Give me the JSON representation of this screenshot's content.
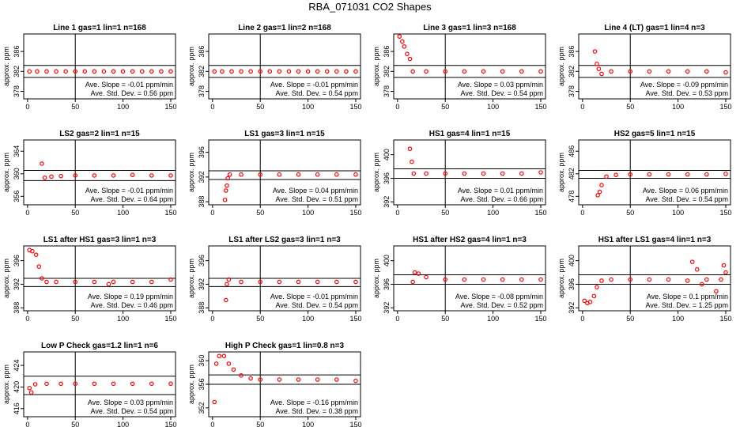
{
  "figure": {
    "title": "RBA_071031  CO2 Shapes"
  },
  "chart_data": [
    {
      "type": "scatter",
      "title": "Line 1 gas=1 lin=1 n=168",
      "ylabel": "approx. ppm",
      "xlim": [
        -4,
        155
      ],
      "ylim": [
        376.5,
        389.5
      ],
      "xticks": [
        0,
        50,
        100,
        150
      ],
      "xtick_labels": [
        "0",
        "50",
        "100",
        "150"
      ],
      "yticks": [
        378,
        382,
        386
      ],
      "ytick_labels": [
        "378",
        "382",
        "386"
      ],
      "hlines": [
        383.2,
        380.8
      ],
      "vline": 50,
      "annotation": [
        "Ave. Slope = -0.01  ppm/min",
        "Ave. Std. Dev. = 0.56  ppm"
      ],
      "points": [
        [
          2,
          382.0
        ],
        [
          10,
          382.0
        ],
        [
          20,
          382.0
        ],
        [
          30,
          382.0
        ],
        [
          40,
          382.0
        ],
        [
          50,
          382.0
        ],
        [
          60,
          382.0
        ],
        [
          70,
          382.0
        ],
        [
          80,
          382.0
        ],
        [
          90,
          382.0
        ],
        [
          100,
          382.0
        ],
        [
          110,
          382.0
        ],
        [
          120,
          382.0
        ],
        [
          130,
          382.0
        ],
        [
          140,
          382.0
        ],
        [
          150,
          382.0
        ]
      ]
    },
    {
      "type": "scatter",
      "title": "Line 2 gas=1 lin=2 n=168",
      "ylabel": "approx. ppm",
      "xlim": [
        -4,
        155
      ],
      "ylim": [
        376.5,
        389.5
      ],
      "xticks": [
        0,
        50,
        100,
        150
      ],
      "xtick_labels": [
        "0",
        "50",
        "100",
        "150"
      ],
      "yticks": [
        378,
        382,
        386
      ],
      "ytick_labels": [
        "378",
        "382",
        "386"
      ],
      "hlines": [
        383.2,
        380.8
      ],
      "vline": 50,
      "annotation": [
        "Ave. Slope = -0.01  ppm/min",
        "Ave. Std. Dev. = 0.54  ppm"
      ],
      "points": [
        [
          2,
          382.0
        ],
        [
          10,
          382.0
        ],
        [
          20,
          382.0
        ],
        [
          30,
          382.0
        ],
        [
          40,
          382.0
        ],
        [
          50,
          382.0
        ],
        [
          60,
          382.0
        ],
        [
          70,
          382.0
        ],
        [
          80,
          382.0
        ],
        [
          90,
          382.0
        ],
        [
          100,
          382.0
        ],
        [
          110,
          382.0
        ],
        [
          120,
          382.0
        ],
        [
          130,
          382.0
        ],
        [
          140,
          382.0
        ],
        [
          150,
          382.0
        ]
      ]
    },
    {
      "type": "scatter",
      "title": "Line 3 gas=1 lin=3 n=168",
      "ylabel": "approx. ppm",
      "xlim": [
        -4,
        155
      ],
      "ylim": [
        376.5,
        389.5
      ],
      "xticks": [
        0,
        50,
        100,
        150
      ],
      "xtick_labels": [
        "0",
        "50",
        "100",
        "150"
      ],
      "yticks": [
        378,
        382,
        386
      ],
      "ytick_labels": [
        "378",
        "382",
        "386"
      ],
      "hlines": [
        383.2,
        380.8
      ],
      "vline": 50,
      "annotation": [
        "Ave. Slope = 0.03  ppm/min",
        "Ave. Std. Dev. = 0.54  ppm"
      ],
      "points": [
        [
          2,
          389.0
        ],
        [
          5,
          388.0
        ],
        [
          7,
          387.0
        ],
        [
          10,
          385.5
        ],
        [
          13,
          384.5
        ],
        [
          16,
          382.0
        ],
        [
          30,
          382.0
        ],
        [
          50,
          382.0
        ],
        [
          70,
          382.0
        ],
        [
          90,
          382.0
        ],
        [
          110,
          382.0
        ],
        [
          130,
          382.0
        ],
        [
          150,
          382.0
        ]
      ]
    },
    {
      "type": "scatter",
      "title": "Line 4 (LT) gas=1 lin=4 n=3",
      "ylabel": "approx. ppm",
      "xlim": [
        -4,
        155
      ],
      "ylim": [
        376.5,
        389.5
      ],
      "xticks": [
        0,
        50,
        100,
        150
      ],
      "xtick_labels": [
        "0",
        "50",
        "100",
        "150"
      ],
      "yticks": [
        378,
        382,
        386
      ],
      "ytick_labels": [
        "378",
        "382",
        "386"
      ],
      "hlines": [
        383.2,
        380.8
      ],
      "vline": 50,
      "annotation": [
        "Ave. Slope = -0.09  ppm/min",
        "Ave. Std. Dev. = 0.53  ppm"
      ],
      "points": [
        [
          13,
          386.0
        ],
        [
          15,
          383.5
        ],
        [
          17,
          382.5
        ],
        [
          20,
          381.5
        ],
        [
          30,
          382.0
        ],
        [
          50,
          382.0
        ],
        [
          70,
          382.0
        ],
        [
          90,
          382.0
        ],
        [
          110,
          382.0
        ],
        [
          130,
          382.0
        ],
        [
          150,
          381.8
        ]
      ]
    },
    {
      "type": "scatter",
      "title": "LS2 gas=2 lin=1 n=15",
      "ylabel": "approx. ppm",
      "xlim": [
        -4,
        155
      ],
      "ylim": [
        354.5,
        366
      ],
      "xticks": [
        0,
        50,
        100,
        150
      ],
      "xtick_labels": [
        "0",
        "50",
        "100",
        "150"
      ],
      "yticks": [
        356,
        360,
        364
      ],
      "ytick_labels": [
        "356",
        "360",
        "364"
      ],
      "hlines": [
        360.6,
        358.8
      ],
      "vline": 50,
      "annotation": [
        "Ave. Slope = -0.01  ppm/min",
        "Ave. Std. Dev. = 0.64  ppm"
      ],
      "points": [
        [
          15,
          361.8
        ],
        [
          18,
          359.3
        ],
        [
          25,
          359.5
        ],
        [
          35,
          359.6
        ],
        [
          50,
          359.7
        ],
        [
          70,
          359.7
        ],
        [
          90,
          359.7
        ],
        [
          110,
          359.8
        ],
        [
          130,
          359.7
        ],
        [
          150,
          359.7
        ]
      ]
    },
    {
      "type": "scatter",
      "title": "LS1 gas=3 lin=1 n=15",
      "ylabel": "approx. ppm",
      "xlim": [
        -4,
        155
      ],
      "ylim": [
        387.5,
        398
      ],
      "xticks": [
        0,
        50,
        100,
        150
      ],
      "xtick_labels": [
        "0",
        "50",
        "100",
        "150"
      ],
      "yticks": [
        388,
        392,
        396
      ],
      "ytick_labels": [
        "388",
        "392",
        "396"
      ],
      "hlines": [
        393.0,
        391.6
      ],
      "vline": 50,
      "annotation": [
        "Ave. Slope = 0.04  ppm/min",
        "Ave. Std. Dev. = 0.51  ppm"
      ],
      "points": [
        [
          13,
          388.3
        ],
        [
          14,
          389.8
        ],
        [
          15,
          390.6
        ],
        [
          16,
          391.8
        ],
        [
          18,
          392.4
        ],
        [
          30,
          392.4
        ],
        [
          50,
          392.4
        ],
        [
          70,
          392.4
        ],
        [
          90,
          392.4
        ],
        [
          110,
          392.4
        ],
        [
          130,
          392.4
        ],
        [
          150,
          392.4
        ]
      ]
    },
    {
      "type": "scatter",
      "title": "HS1 gas=4 lin=1 n=15",
      "ylabel": "approx. ppm",
      "xlim": [
        -4,
        155
      ],
      "ylim": [
        391.5,
        402.5
      ],
      "xticks": [
        0,
        50,
        100,
        150
      ],
      "xtick_labels": [
        "0",
        "50",
        "100",
        "150"
      ],
      "yticks": [
        392,
        396,
        400
      ],
      "ytick_labels": [
        "392",
        "396",
        "400"
      ],
      "hlines": [
        397.6,
        396.0
      ],
      "vline": 50,
      "annotation": [
        "Ave. Slope = 0.01  ppm/min",
        "Ave. Std. Dev. = 0.66  ppm"
      ],
      "points": [
        [
          13,
          401.0
        ],
        [
          15,
          398.8
        ],
        [
          17,
          396.8
        ],
        [
          30,
          396.8
        ],
        [
          50,
          396.8
        ],
        [
          70,
          396.8
        ],
        [
          90,
          396.8
        ],
        [
          110,
          396.8
        ],
        [
          130,
          396.8
        ],
        [
          150,
          397.0
        ]
      ]
    },
    {
      "type": "scatter",
      "title": "HS2 gas=5 lin=1 n=15",
      "ylabel": "approx. ppm",
      "xlim": [
        -4,
        155
      ],
      "ylim": [
        476.5,
        488
      ],
      "xticks": [
        0,
        50,
        100,
        150
      ],
      "xtick_labels": [
        "0",
        "50",
        "100",
        "150"
      ],
      "yticks": [
        478,
        482,
        486
      ],
      "ytick_labels": [
        "478",
        "482",
        "486"
      ],
      "hlines": [
        482.6,
        481.2
      ],
      "vline": 50,
      "annotation": [
        "Ave. Slope = 0.06  ppm/min",
        "Ave. Std. Dev. = 0.54  ppm"
      ],
      "points": [
        [
          16,
          478.2
        ],
        [
          18,
          478.8
        ],
        [
          20,
          480.0
        ],
        [
          25,
          481.5
        ],
        [
          35,
          481.8
        ],
        [
          50,
          481.9
        ],
        [
          70,
          481.9
        ],
        [
          90,
          481.9
        ],
        [
          110,
          481.9
        ],
        [
          130,
          481.9
        ],
        [
          150,
          482.0
        ]
      ]
    },
    {
      "type": "scatter",
      "title": "LS1 after HS1 gas=3 lin=1 n=3",
      "ylabel": "approx. ppm",
      "xlim": [
        -4,
        155
      ],
      "ylim": [
        387.5,
        398.5
      ],
      "xticks": [
        0,
        50,
        100,
        150
      ],
      "xtick_labels": [
        "0",
        "50",
        "100",
        "150"
      ],
      "yticks": [
        388,
        392,
        396
      ],
      "ytick_labels": [
        "388",
        "392",
        "396"
      ],
      "hlines": [
        393.0,
        391.6
      ],
      "vline": 50,
      "annotation": [
        "Ave. Slope = 0.19  ppm/min",
        "Ave. Std. Dev. = 0.46  ppm"
      ],
      "points": [
        [
          2,
          397.8
        ],
        [
          5,
          397.6
        ],
        [
          9,
          397.0
        ],
        [
          12,
          395.0
        ],
        [
          15,
          393.0
        ],
        [
          20,
          392.4
        ],
        [
          30,
          392.4
        ],
        [
          50,
          392.4
        ],
        [
          70,
          392.4
        ],
        [
          85,
          392.0
        ],
        [
          90,
          392.4
        ],
        [
          110,
          392.4
        ],
        [
          130,
          392.4
        ],
        [
          150,
          392.8
        ]
      ]
    },
    {
      "type": "scatter",
      "title": "LS1 after LS2 gas=3 lin=1 n=3",
      "ylabel": "approx. ppm",
      "xlim": [
        -4,
        155
      ],
      "ylim": [
        387.5,
        398.5
      ],
      "xticks": [
        0,
        50,
        100,
        150
      ],
      "xtick_labels": [
        "0",
        "50",
        "100",
        "150"
      ],
      "yticks": [
        388,
        392,
        396
      ],
      "ytick_labels": [
        "388",
        "392",
        "396"
      ],
      "hlines": [
        393.0,
        391.6
      ],
      "vline": 50,
      "annotation": [
        "Ave. Slope = -0.01  ppm/min",
        "Ave. Std. Dev. = 0.54  ppm"
      ],
      "points": [
        [
          14,
          389.3
        ],
        [
          15,
          392.0
        ],
        [
          17,
          392.8
        ],
        [
          30,
          392.4
        ],
        [
          50,
          392.4
        ],
        [
          70,
          392.4
        ],
        [
          90,
          392.4
        ],
        [
          110,
          392.4
        ],
        [
          130,
          392.4
        ],
        [
          150,
          392.4
        ]
      ]
    },
    {
      "type": "scatter",
      "title": "HS1 after HS2 gas=4 lin=1 n=3",
      "ylabel": "approx. ppm",
      "xlim": [
        -4,
        155
      ],
      "ylim": [
        391.5,
        402.5
      ],
      "xticks": [
        0,
        50,
        100,
        150
      ],
      "xtick_labels": [
        "0",
        "50",
        "100",
        "150"
      ],
      "yticks": [
        392,
        396,
        400
      ],
      "ytick_labels": [
        "392",
        "396",
        "400"
      ],
      "hlines": [
        397.6,
        396.0
      ],
      "vline": 50,
      "annotation": [
        "Ave. Slope = -0.08  ppm/min",
        "Ave. Std. Dev. = 0.52  ppm"
      ],
      "points": [
        [
          16,
          396.4
        ],
        [
          18,
          398.0
        ],
        [
          22,
          397.8
        ],
        [
          30,
          397.2
        ],
        [
          50,
          396.8
        ],
        [
          70,
          396.8
        ],
        [
          90,
          396.8
        ],
        [
          110,
          396.8
        ],
        [
          130,
          396.8
        ],
        [
          150,
          396.8
        ]
      ]
    },
    {
      "type": "scatter",
      "title": "HS1 after LS1 gas=4 lin=1 n=3",
      "ylabel": "approx. ppm",
      "xlim": [
        -4,
        155
      ],
      "ylim": [
        391.5,
        402.5
      ],
      "xticks": [
        0,
        50,
        100,
        150
      ],
      "xtick_labels": [
        "0",
        "50",
        "100",
        "150"
      ],
      "yticks": [
        392,
        396,
        400
      ],
      "ytick_labels": [
        "392",
        "396",
        "400"
      ],
      "hlines": [
        397.6,
        396.0
      ],
      "vline": 50,
      "annotation": [
        "Ave. Slope = 0.1  ppm/min",
        "Ave. Std. Dev. = 1.25  ppm"
      ],
      "points": [
        [
          2,
          393.2
        ],
        [
          5,
          392.8
        ],
        [
          8,
          393.0
        ],
        [
          12,
          394.0
        ],
        [
          15,
          395.5
        ],
        [
          20,
          396.6
        ],
        [
          30,
          396.8
        ],
        [
          50,
          396.8
        ],
        [
          70,
          396.8
        ],
        [
          90,
          396.8
        ],
        [
          110,
          396.6
        ],
        [
          115,
          399.8
        ],
        [
          120,
          398.5
        ],
        [
          125,
          396.0
        ],
        [
          130,
          396.8
        ],
        [
          140,
          394.8
        ],
        [
          145,
          396.8
        ],
        [
          148,
          399.2
        ],
        [
          150,
          398.0
        ]
      ]
    },
    {
      "type": "scatter",
      "title": "Low P Check gas=1.2 lin=1 n=6",
      "ylabel": "approx. ppm",
      "xlim": [
        -4,
        155
      ],
      "ylim": [
        414.5,
        426.5
      ],
      "xticks": [
        0,
        50,
        100,
        150
      ],
      "xtick_labels": [
        "0",
        "50",
        "100",
        "150"
      ],
      "yticks": [
        416,
        420,
        424
      ],
      "ytick_labels": [
        "416",
        "420",
        "424"
      ],
      "hlines": [
        422.0,
        418.6
      ],
      "vline": 50,
      "annotation": [
        "Ave. Slope = 0.03  ppm/min",
        "Ave. Std. Dev. = 0.54  ppm"
      ],
      "points": [
        [
          2,
          419.8
        ],
        [
          4,
          419.0
        ],
        [
          8,
          420.5
        ],
        [
          20,
          420.6
        ],
        [
          35,
          420.6
        ],
        [
          50,
          420.6
        ],
        [
          70,
          420.6
        ],
        [
          90,
          420.6
        ],
        [
          110,
          420.6
        ],
        [
          130,
          420.6
        ],
        [
          150,
          420.6
        ]
      ]
    },
    {
      "type": "scatter",
      "title": "High P Check gas=1 lin=0.8 n=3",
      "ylabel": "approx. ppm",
      "xlim": [
        -4,
        155
      ],
      "ylim": [
        350.5,
        361.5
      ],
      "xticks": [
        0,
        50,
        100,
        150
      ],
      "xtick_labels": [
        "0",
        "50",
        "100",
        "150"
      ],
      "yticks": [
        352,
        356,
        360
      ],
      "ytick_labels": [
        "352",
        "356",
        "360"
      ],
      "hlines": [
        357.6,
        356.0
      ],
      "vline": 50,
      "annotation": [
        "Ave. Slope = -0.16  ppm/min",
        "Ave. Std. Dev. = 0.38  ppm"
      ],
      "points": [
        [
          2,
          353.0
        ],
        [
          4,
          359.5
        ],
        [
          7,
          360.8
        ],
        [
          12,
          360.8
        ],
        [
          17,
          359.5
        ],
        [
          22,
          358.5
        ],
        [
          30,
          357.5
        ],
        [
          40,
          357.0
        ],
        [
          50,
          356.8
        ],
        [
          70,
          356.8
        ],
        [
          90,
          356.8
        ],
        [
          110,
          356.8
        ],
        [
          130,
          356.8
        ],
        [
          150,
          356.6
        ]
      ]
    }
  ]
}
